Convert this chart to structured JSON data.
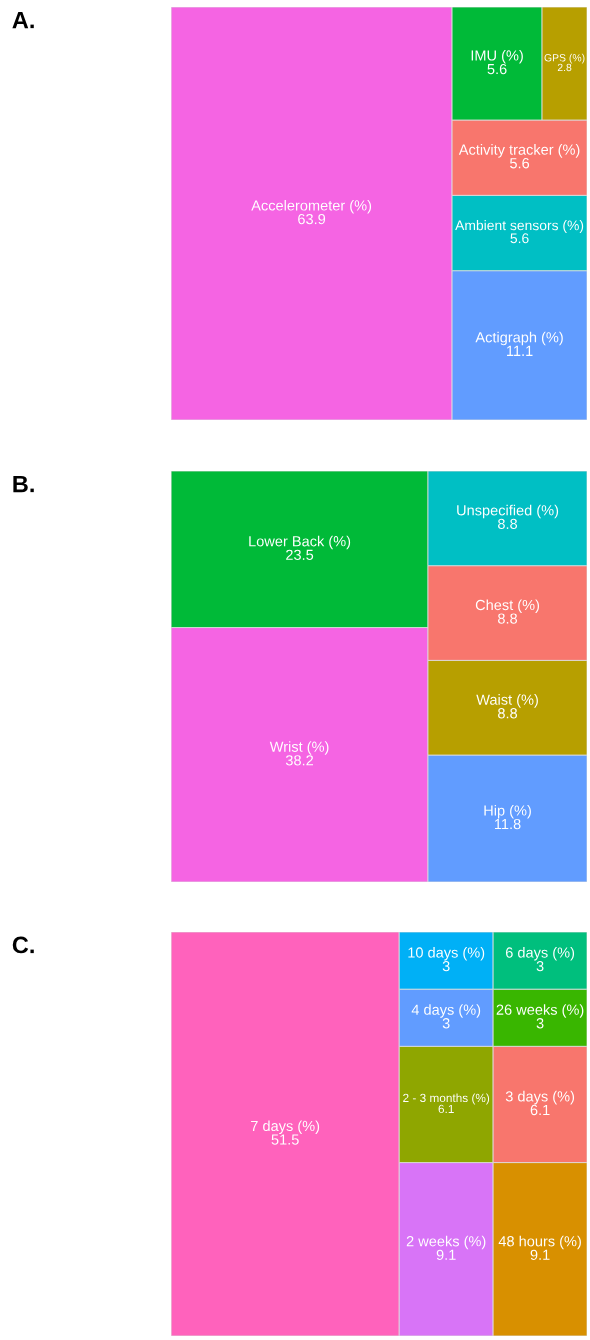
{
  "chart_data": [
    {
      "type": "other",
      "title": "A.",
      "data_labels": true,
      "categories": [
        "Accelerometer (%)",
        "Actigraph (%)",
        "Ambient sensors (%)",
        "Activity tracker (%)",
        "IMU (%)",
        "GPS (%)"
      ],
      "values": [
        63.9,
        11.1,
        5.6,
        5.6,
        5.6,
        2.8
      ],
      "colors": [
        "#f564e3",
        "#619cff",
        "#00bfc4",
        "#f8766d",
        "#00ba38",
        "#b79f00"
      ]
    },
    {
      "type": "other",
      "title": "B.",
      "data_labels": true,
      "categories": [
        "Wrist (%)",
        "Lower Back (%)",
        "Hip (%)",
        "Waist (%)",
        "Chest (%)",
        "Unspecified (%)"
      ],
      "values": [
        38.2,
        23.5,
        11.8,
        8.8,
        8.8,
        8.8
      ],
      "colors": [
        "#f564e3",
        "#00ba38",
        "#619cff",
        "#b79f00",
        "#f8766d",
        "#00bfc4"
      ]
    },
    {
      "type": "other",
      "title": "C.",
      "data_labels": true,
      "categories": [
        "7 days (%)",
        "2 weeks (%)",
        "48 hours (%)",
        "2 - 3 months (%)",
        "3 days (%)",
        "4 days (%)",
        "10 days (%)",
        "26 weeks (%)",
        "6 days (%)"
      ],
      "values": [
        51.5,
        9.1,
        9.1,
        6.1,
        6.1,
        3,
        3,
        3,
        3
      ],
      "colors": [
        "#ff62bc",
        "#d874f7",
        "#d89000",
        "#8fa600",
        "#f8766d",
        "#619cff",
        "#00b0f6",
        "#39b600",
        "#00bf7d"
      ]
    }
  ]
}
